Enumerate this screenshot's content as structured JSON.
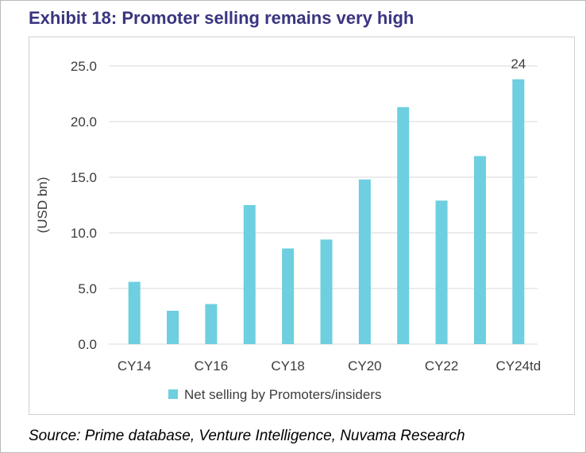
{
  "header": {
    "title": "Exhibit 18: Promoter selling remains very high"
  },
  "footer": {
    "source": "Source: Prime database, Venture Intelligence, Nuvama Research"
  },
  "colors": {
    "bar": "#6dcfdf",
    "title": "#3a3580",
    "gridline": "#d9d9d9",
    "text": "#3c3c3c"
  },
  "chart_data": {
    "type": "bar",
    "categories": [
      "CY14",
      "CY15",
      "CY16",
      "CY17",
      "CY18",
      "CY19",
      "CY20",
      "CY21",
      "CY22",
      "CY23",
      "CY24td"
    ],
    "shown_category_labels": [
      "CY14",
      "CY16",
      "CY18",
      "CY20",
      "CY22",
      "CY24td"
    ],
    "series": [
      {
        "name": "Net selling by Promoters/insiders",
        "values": [
          5.6,
          3.0,
          3.6,
          12.5,
          8.6,
          9.4,
          14.8,
          21.3,
          12.9,
          16.9,
          23.8
        ]
      }
    ],
    "ylabel": "(USD bn)",
    "xlabel": "",
    "ylim": [
      0,
      25
    ],
    "yticks": [
      "0.0",
      "5.0",
      "10.0",
      "15.0",
      "20.0",
      "25.0"
    ],
    "data_labels": [
      {
        "category": "CY24td",
        "text": "24"
      }
    ],
    "grid": true,
    "legend_position": "bottom"
  }
}
